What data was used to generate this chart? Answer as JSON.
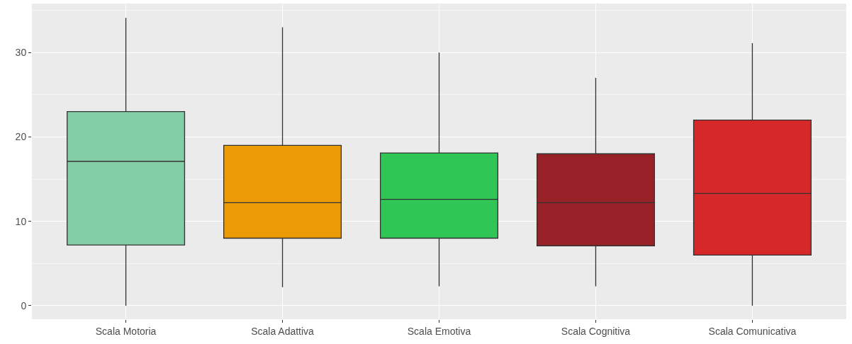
{
  "chart_data": {
    "type": "box",
    "categories": [
      "Scala Motoria",
      "Scala Adattiva",
      "Scala Emotiva",
      "Scala Cognitiva",
      "Scala Comunicativa"
    ],
    "colors": [
      "#83cda7",
      "#ec9b04",
      "#2fc655",
      "#972127",
      "#d62828"
    ],
    "boxes": [
      {
        "low": 0,
        "q1": 7.2,
        "median": 17.1,
        "q3": 23,
        "high": 34.1
      },
      {
        "low": 2.2,
        "q1": 8,
        "median": 12.2,
        "q3": 19,
        "high": 33
      },
      {
        "low": 2.3,
        "q1": 8,
        "median": 12.6,
        "q3": 18.1,
        "high": 30
      },
      {
        "low": 2.3,
        "q1": 7.1,
        "median": 12.2,
        "q3": 18,
        "high": 27
      },
      {
        "low": 0,
        "q1": 6,
        "median": 13.3,
        "q3": 22,
        "high": 31.1
      }
    ],
    "ylim": [
      -1.6,
      35.8
    ],
    "yticks": [
      0,
      10,
      20,
      30
    ],
    "grid": true
  }
}
